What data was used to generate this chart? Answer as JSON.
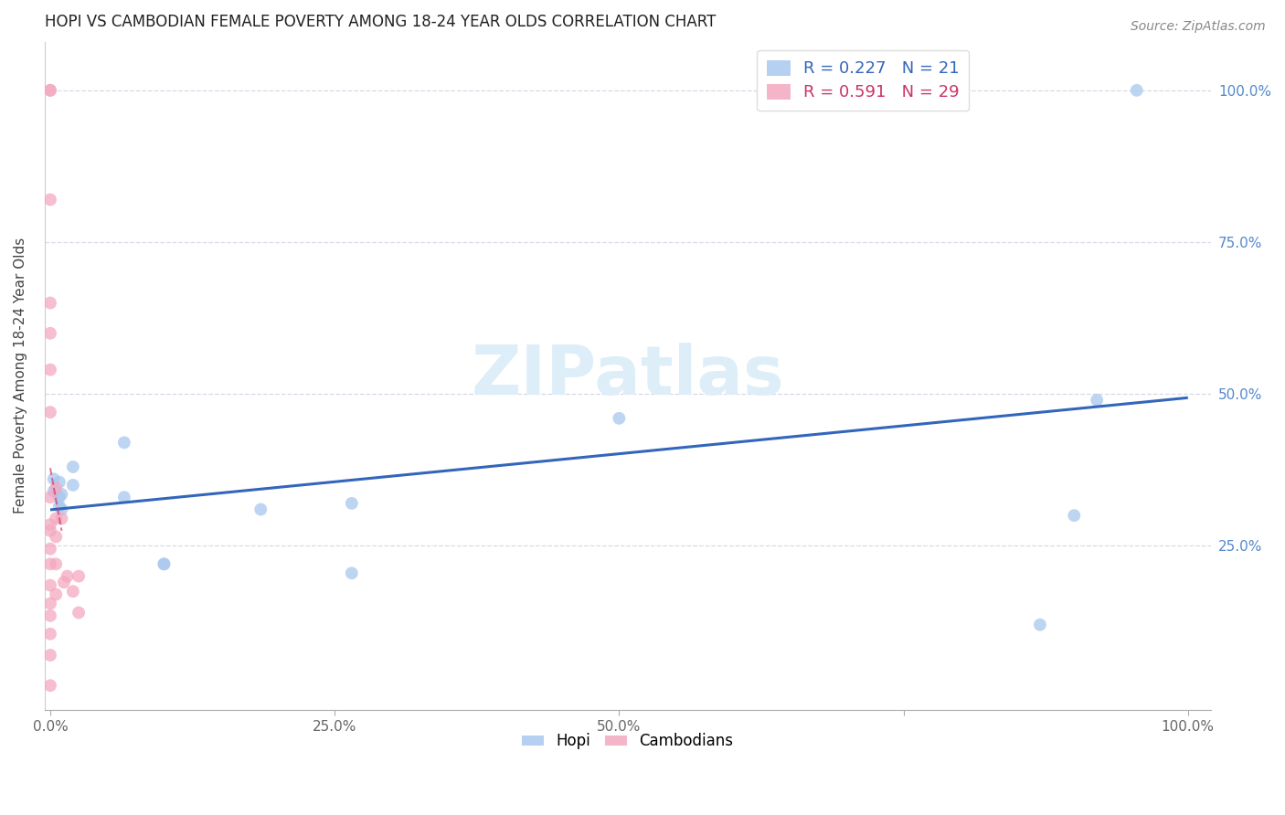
{
  "title": "HOPI VS CAMBODIAN FEMALE POVERTY AMONG 18-24 YEAR OLDS CORRELATION CHART",
  "source": "Source: ZipAtlas.com",
  "ylabel": "Female Poverty Among 18-24 Year Olds",
  "hopi_R": 0.227,
  "hopi_N": 21,
  "camb_R": 0.591,
  "camb_N": 29,
  "hopi_color": "#a8c8ee",
  "camb_color": "#f4a8c0",
  "hopi_line_color": "#3366bb",
  "camb_line_color": "#cc3366",
  "watermark_color": "#ddeef8",
  "hopi_x": [
    0.003,
    0.003,
    0.008,
    0.008,
    0.008,
    0.01,
    0.01,
    0.02,
    0.02,
    0.065,
    0.065,
    0.1,
    0.1,
    0.185,
    0.265,
    0.265,
    0.5,
    0.87,
    0.9,
    0.92,
    0.955
  ],
  "hopi_y": [
    0.36,
    0.34,
    0.355,
    0.33,
    0.315,
    0.335,
    0.31,
    0.38,
    0.35,
    0.42,
    0.33,
    0.22,
    0.22,
    0.31,
    0.205,
    0.32,
    0.46,
    0.12,
    0.3,
    0.49,
    1.0
  ],
  "camb_x": [
    0.0,
    0.0,
    0.0,
    0.0,
    0.0,
    0.0,
    0.0,
    0.0,
    0.0,
    0.0,
    0.0,
    0.0,
    0.0,
    0.0,
    0.0,
    0.0,
    0.0,
    0.0,
    0.005,
    0.005,
    0.005,
    0.005,
    0.005,
    0.01,
    0.012,
    0.015,
    0.02,
    0.025,
    0.025
  ],
  "camb_y": [
    1.0,
    1.0,
    0.82,
    0.65,
    0.6,
    0.54,
    0.47,
    0.33,
    0.285,
    0.275,
    0.245,
    0.22,
    0.185,
    0.155,
    0.135,
    0.105,
    0.07,
    0.02,
    0.345,
    0.295,
    0.265,
    0.22,
    0.17,
    0.295,
    0.19,
    0.2,
    0.175,
    0.2,
    0.14
  ],
  "xlim": [
    0.0,
    1.0
  ],
  "ylim": [
    0.0,
    1.0
  ],
  "xticks": [
    0.0,
    0.25,
    0.5,
    0.75,
    1.0
  ],
  "xtick_labels": [
    "0.0%",
    "25.0%",
    "50.0%",
    "",
    "100.0%"
  ],
  "yticks": [
    0.0,
    0.25,
    0.5,
    0.75,
    1.0
  ],
  "ytick_labels_right": [
    "",
    "25.0%",
    "50.0%",
    "75.0%",
    "100.0%"
  ],
  "marker_size": 100,
  "grid_color": "#e8e8f0",
  "dash_grid_color": "#d8d8e8"
}
